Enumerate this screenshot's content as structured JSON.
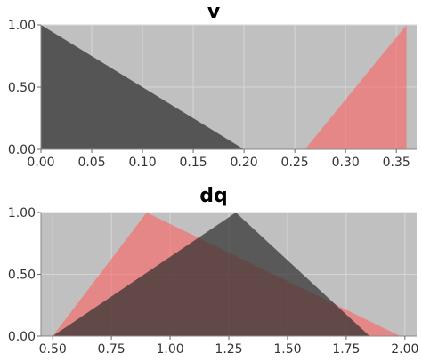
{
  "chart_data": [
    {
      "type": "area",
      "title": "v",
      "xlabel": "",
      "ylabel": "",
      "xlim": [
        0.0,
        0.37
      ],
      "ylim": [
        0.0,
        1.0
      ],
      "x_ticks": [
        "0.00",
        "0.05",
        "0.10",
        "0.15",
        "0.20",
        "0.25",
        "0.30",
        "0.35"
      ],
      "y_ticks": [
        "0.00",
        "0.50",
        "1.00"
      ],
      "grid": true,
      "background": "#c0c0c0",
      "series": [
        {
          "color": "#555555",
          "opacity": 1.0,
          "points": [
            [
              0.0,
              0.0
            ],
            [
              0.0,
              1.0
            ],
            [
              0.2,
              0.0
            ]
          ]
        },
        {
          "color": "#ff6060",
          "opacity": 0.6,
          "points": [
            [
              0.26,
              0.0
            ],
            [
              0.36,
              1.0
            ],
            [
              0.36,
              0.0
            ]
          ]
        }
      ]
    },
    {
      "type": "area",
      "title": "dq",
      "xlabel": "",
      "ylabel": "",
      "xlim": [
        0.45,
        2.05
      ],
      "ylim": [
        0.0,
        1.0
      ],
      "x_ticks": [
        "0.50",
        "0.75",
        "1.00",
        "1.25",
        "1.50",
        "1.75",
        "2.00"
      ],
      "y_ticks": [
        "0.00",
        "0.50",
        "1.00"
      ],
      "grid": true,
      "background": "#c0c0c0",
      "series": [
        {
          "color": "#ff6060",
          "opacity": 0.6,
          "points": [
            [
              0.5,
              0.0
            ],
            [
              0.9,
              1.0
            ],
            [
              1.98,
              0.0
            ]
          ]
        },
        {
          "color": "#303030",
          "opacity": 0.72,
          "points": [
            [
              0.5,
              0.0
            ],
            [
              1.28,
              1.0
            ],
            [
              1.85,
              0.0
            ]
          ]
        }
      ]
    }
  ]
}
